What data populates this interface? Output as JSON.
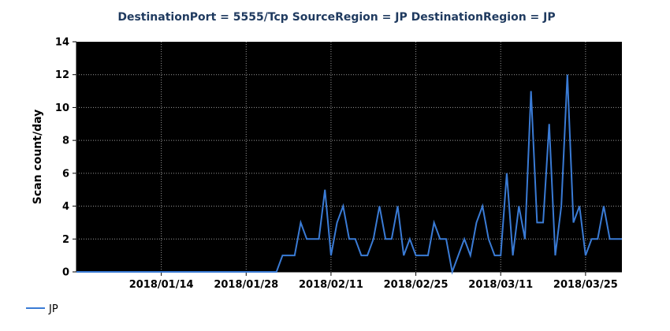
{
  "chart_data": {
    "type": "line",
    "title": "DestinationPort = 5555/Tcp SourceRegion = JP DestinationRegion = JP",
    "xlabel": "",
    "ylabel": "Scan count/day",
    "ylim": [
      0,
      14
    ],
    "yticks": [
      0,
      2,
      4,
      6,
      8,
      10,
      12,
      14
    ],
    "xlim": [
      "2017-12-31",
      "2018-03-31"
    ],
    "xticks": [
      "2018/01/14",
      "2018/01/28",
      "2018/02/11",
      "2018/02/25",
      "2018/03/11",
      "2018/03/25"
    ],
    "grid": true,
    "background": "#000000",
    "legend_position": "bottom-left",
    "series": [
      {
        "name": "JP",
        "color": "#3a7bd5",
        "x": [
          "2017-12-31",
          "2018-01-07",
          "2018-01-14",
          "2018-01-21",
          "2018-01-28",
          "2018-02-02",
          "2018-02-03",
          "2018-02-04",
          "2018-02-05",
          "2018-02-06",
          "2018-02-07",
          "2018-02-08",
          "2018-02-09",
          "2018-02-10",
          "2018-02-11",
          "2018-02-12",
          "2018-02-13",
          "2018-02-14",
          "2018-02-15",
          "2018-02-16",
          "2018-02-17",
          "2018-02-18",
          "2018-02-19",
          "2018-02-20",
          "2018-02-21",
          "2018-02-22",
          "2018-02-23",
          "2018-02-24",
          "2018-02-25",
          "2018-02-26",
          "2018-02-27",
          "2018-02-28",
          "2018-03-01",
          "2018-03-02",
          "2018-03-03",
          "2018-03-04",
          "2018-03-05",
          "2018-03-06",
          "2018-03-07",
          "2018-03-08",
          "2018-03-09",
          "2018-03-10",
          "2018-03-11",
          "2018-03-12",
          "2018-03-13",
          "2018-03-14",
          "2018-03-15",
          "2018-03-16",
          "2018-03-17",
          "2018-03-18",
          "2018-03-19",
          "2018-03-20",
          "2018-03-21",
          "2018-03-22",
          "2018-03-23",
          "2018-03-24",
          "2018-03-25",
          "2018-03-26",
          "2018-03-27",
          "2018-03-28",
          "2018-03-29",
          "2018-03-30",
          "2018-03-31"
        ],
        "y": [
          0,
          0,
          0,
          0,
          0,
          0,
          1,
          1,
          1,
          3,
          2,
          2,
          2,
          5,
          1,
          3,
          4,
          2,
          2,
          1,
          1,
          2,
          4,
          2,
          2,
          4,
          1,
          2,
          1,
          1,
          1,
          3,
          2,
          2,
          0,
          1,
          2,
          1,
          3,
          4,
          2,
          1,
          1,
          6,
          1,
          4,
          2,
          11,
          3,
          3,
          9,
          1,
          4,
          12,
          3,
          4,
          1,
          2,
          2,
          4,
          2,
          2,
          2
        ]
      }
    ]
  }
}
